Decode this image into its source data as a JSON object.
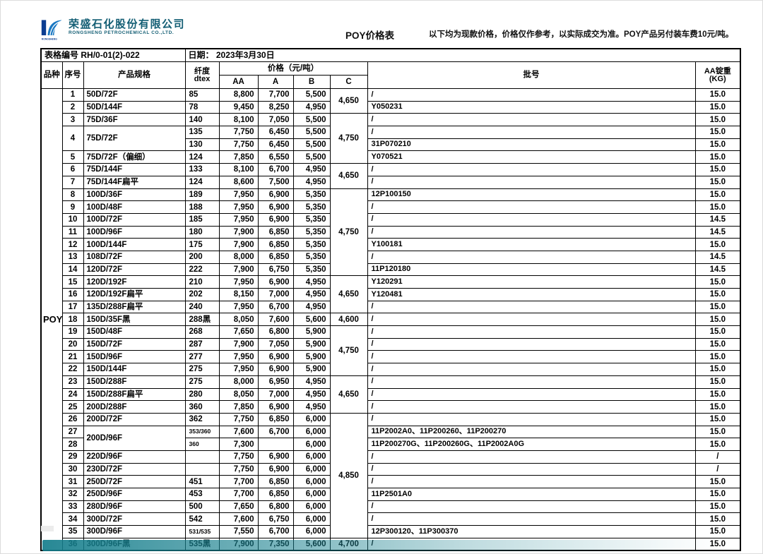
{
  "header": {
    "company_cn": "荣盛石化股份有限公司",
    "company_en": "RONGSHENG PETROCHEMICAL CO.,LTD.",
    "logo_text": "RONGSHENG",
    "doc_title": "POY价格表",
    "notice": "以下均为现款价格，价格仅作参考，以实际成交为准。POY产品另付装车费10元/吨。"
  },
  "meta": {
    "form_no_label": "表格编号",
    "form_no": "RH/0-01(2)-022",
    "date_label": "日期：",
    "date": "2023年3月30日"
  },
  "columns": {
    "variety": "品种",
    "seq": "序号",
    "spec": "产品规格",
    "dtex_cn": "纤度",
    "dtex_en": "dtex",
    "price_group": "价格（元/吨）",
    "grades": [
      "AA",
      "A",
      "B",
      "C"
    ],
    "batch": "批号",
    "weight_line1": "AA锭重",
    "weight_line2": "(KG)"
  },
  "variety_label": "POY",
  "rows": [
    {
      "no": "1",
      "spec": "50D/72F",
      "dtex": "85",
      "aa": "8,800",
      "a": "7,700",
      "b": "5,500",
      "c": "4,650",
      "cspan": 2,
      "batch": "/",
      "wt": "15.0"
    },
    {
      "no": "2",
      "spec": "50D/144F",
      "dtex": "78",
      "aa": "9,450",
      "a": "8,250",
      "b": "4,950",
      "batch": "Y050231",
      "wt": "15.0"
    },
    {
      "no": "3",
      "spec": "75D/36F",
      "dtex": "140",
      "aa": "8,100",
      "a": "7,050",
      "b": "5,500",
      "c": "4,750",
      "cspan": 4,
      "batch": "/",
      "wt": "15.0"
    },
    {
      "no": "4",
      "nospan": 2,
      "spec": "75D/72F",
      "specspan": 2,
      "dtex": "135",
      "aa": "7,750",
      "a": "6,450",
      "b": "5,500",
      "batch": "/",
      "wt": "15.0"
    },
    {
      "cont": true,
      "dtex": "130",
      "aa": "7,750",
      "a": "6,450",
      "b": "5,500",
      "batch": "31P070210",
      "wt": "15.0"
    },
    {
      "no": "5",
      "spec": "75D/72F（偏细）",
      "dtex": "124",
      "aa": "7,850",
      "a": "6,550",
      "b": "5,500",
      "batch": "Y070521",
      "wt": "15.0"
    },
    {
      "no": "6",
      "spec": "75D/144F",
      "dtex": "133",
      "aa": "8,100",
      "a": "6,700",
      "b": "4,950",
      "c": "4,650",
      "cspan": 2,
      "batch": "/",
      "wt": "15.0"
    },
    {
      "no": "7",
      "spec": "75D/144F扁平",
      "dtex": "124",
      "aa": "8,600",
      "a": "7,500",
      "b": "4,950",
      "batch": "/",
      "wt": "15.0"
    },
    {
      "no": "8",
      "spec": "100D/36F",
      "dtex": "189",
      "aa": "7,950",
      "a": "6,900",
      "b": "5,350",
      "c": "4,750",
      "cspan": 7,
      "batch": "12P100150",
      "wt": "15.0"
    },
    {
      "no": "9",
      "spec": "100D/48F",
      "dtex": "188",
      "aa": "7,950",
      "a": "6,900",
      "b": "5,350",
      "batch": "/",
      "wt": "15.0"
    },
    {
      "no": "10",
      "spec": "100D/72F",
      "dtex": "185",
      "aa": "7,950",
      "a": "6,900",
      "b": "5,350",
      "batch": "/",
      "wt": "14.5"
    },
    {
      "no": "11",
      "spec": "100D/96F",
      "dtex": "180",
      "aa": "7,900",
      "a": "6,850",
      "b": "5,350",
      "batch": "/",
      "wt": "14.5"
    },
    {
      "no": "12",
      "spec": "100D/144F",
      "dtex": "175",
      "aa": "7,900",
      "a": "6,850",
      "b": "5,350",
      "batch": "Y100181",
      "wt": "15.0"
    },
    {
      "no": "13",
      "spec": "108D/72F",
      "dtex": "200",
      "aa": "8,000",
      "a": "6,850",
      "b": "5,350",
      "batch": "/",
      "wt": "14.5"
    },
    {
      "no": "14",
      "spec": "120D/72F",
      "dtex": "222",
      "aa": "7,900",
      "a": "6,750",
      "b": "5,350",
      "batch": "11P120180",
      "wt": "14.5"
    },
    {
      "no": "15",
      "spec": "120D/192F",
      "dtex": "210",
      "aa": "7,950",
      "a": "6,900",
      "b": "4,950",
      "c": "4,650",
      "cspan": 3,
      "batch": "Y120291",
      "wt": "15.0"
    },
    {
      "no": "16",
      "spec": "120D/192F扁平",
      "dtex": "202",
      "aa": "8,150",
      "a": "7,000",
      "b": "4,950",
      "batch": "Y120481",
      "wt": "15.0"
    },
    {
      "no": "17",
      "spec": "135D/288F扁平",
      "dtex": "240",
      "aa": "7,950",
      "a": "6,700",
      "b": "4,950",
      "batch": "/",
      "wt": "15.0"
    },
    {
      "no": "18",
      "spec": "150D/35F黑",
      "dtex": "288黑",
      "aa": "8,050",
      "a": "7,600",
      "b": "5,600",
      "c": "4,600",
      "cspan": 1,
      "batch": "/",
      "wt": "15.0"
    },
    {
      "no": "19",
      "spec": "150D/48F",
      "dtex": "268",
      "aa": "7,650",
      "a": "6,800",
      "b": "5,900",
      "c": "4,750",
      "cspan": 4,
      "batch": "/",
      "wt": "15.0"
    },
    {
      "no": "20",
      "spec": "150D/72F",
      "dtex": "287",
      "aa": "7,900",
      "a": "7,050",
      "b": "5,900",
      "batch": "/",
      "wt": "15.0"
    },
    {
      "no": "21",
      "spec": "150D/96F",
      "dtex": "277",
      "aa": "7,950",
      "a": "6,900",
      "b": "5,900",
      "batch": "/",
      "wt": "15.0"
    },
    {
      "no": "22",
      "spec": "150D/144F",
      "dtex": "275",
      "aa": "7,950",
      "a": "6,900",
      "b": "5,900",
      "batch": "/",
      "wt": "15.0"
    },
    {
      "no": "23",
      "spec": "150D/288F",
      "dtex": "275",
      "aa": "8,000",
      "a": "6,950",
      "b": "4,950",
      "c": "4,650",
      "cspan": 3,
      "batch": "/",
      "wt": "15.0"
    },
    {
      "no": "24",
      "spec": "150D/288F扁平",
      "dtex": "280",
      "aa": "8,050",
      "a": "7,000",
      "b": "4,950",
      "batch": "/",
      "wt": "15.0"
    },
    {
      "no": "25",
      "spec": "200D/288F",
      "dtex": "360",
      "aa": "7,850",
      "a": "6,900",
      "b": "4,950",
      "batch": "/",
      "wt": "15.0"
    },
    {
      "no": "26",
      "spec": "200D/72F",
      "dtex": "362",
      "aa": "7,750",
      "a": "6,850",
      "b": "6,000",
      "c": "4,850",
      "cspan": 10,
      "batch": "/",
      "wt": "15.0"
    },
    {
      "no": "27",
      "spec": "200D/96F",
      "specspan": 2,
      "dtex": "353/360",
      "dtexsmall": true,
      "aa": "7,600",
      "a": "6,700",
      "b": "6,000",
      "batch": "11P2002A0、11P200260、11P200270",
      "wt": "15.0"
    },
    {
      "no": "28",
      "skipspec": true,
      "dtex": "360",
      "dtexsmall": true,
      "aa": "7,300",
      "a": "",
      "b": "6,000",
      "batch": "11P200270G、11P200260G、11P2002A0G",
      "wt": "15.0"
    },
    {
      "no": "29",
      "spec": "220D/96F",
      "dtex": "",
      "aa": "7,750",
      "a": "6,900",
      "b": "6,000",
      "batch": "/",
      "wt": "/"
    },
    {
      "no": "30",
      "spec": "230D/72F",
      "dtex": "",
      "aa": "7,750",
      "a": "6,900",
      "b": "6,000",
      "batch": "/",
      "wt": "/"
    },
    {
      "no": "31",
      "spec": "250D/72F",
      "dtex": "451",
      "aa": "7,700",
      "a": "6,850",
      "b": "6,000",
      "batch": "/",
      "wt": "15.0"
    },
    {
      "no": "32",
      "spec": "250D/96F",
      "dtex": "453",
      "aa": "7,700",
      "a": "6,850",
      "b": "6,000",
      "batch": "11P2501A0",
      "wt": "15.0"
    },
    {
      "no": "33",
      "spec": "280D/96F",
      "dtex": "500",
      "aa": "7,650",
      "a": "6,800",
      "b": "6,000",
      "batch": "/",
      "wt": "15.0"
    },
    {
      "no": "34",
      "spec": "300D/72F",
      "dtex": "542",
      "aa": "7,600",
      "a": "6,750",
      "b": "6,000",
      "batch": "/",
      "wt": "15.0"
    },
    {
      "no": "35",
      "spec": "300D/96F",
      "dtex": "531/535",
      "dtexsmall": true,
      "aa": "7,550",
      "a": "6,700",
      "b": "6,000",
      "batch": "12P300120、11P300370",
      "wt": "15.0"
    },
    {
      "no": "36",
      "spec": "300D/96F黑",
      "dtex": "535黑",
      "aa": "7,900",
      "a": "7,350",
      "b": "5,600",
      "c": "4,700",
      "cspan": 1,
      "batch": "/",
      "wt": "15.0"
    }
  ],
  "colors": {
    "brand_navy": "#0b3d91",
    "brand_blue": "#1a78c2",
    "brand_text": "#135e74",
    "bottom_bar_teal": "#157e8c",
    "table_border": "#000000"
  }
}
